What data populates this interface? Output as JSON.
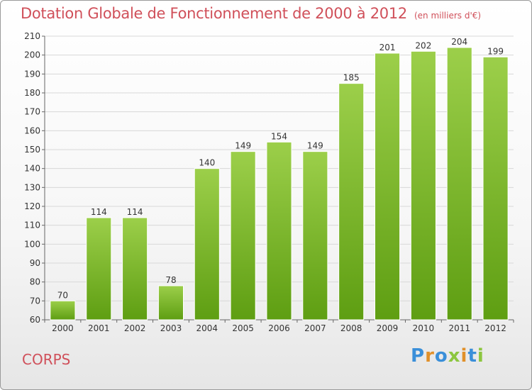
{
  "chart_data": {
    "type": "bar",
    "title": "Dotation Globale de Fonctionnement de 2000 à 2012",
    "subtitle": "(en milliers d'€)",
    "categories": [
      "2000",
      "2001",
      "2002",
      "2003",
      "2004",
      "2005",
      "2006",
      "2007",
      "2008",
      "2009",
      "2010",
      "2011",
      "2012"
    ],
    "values": [
      70,
      114,
      114,
      78,
      140,
      149,
      154,
      149,
      185,
      201,
      202,
      204,
      199
    ],
    "xlabel": "",
    "ylabel": "",
    "ylim": [
      60,
      210
    ],
    "yticks": [
      60,
      70,
      80,
      90,
      100,
      110,
      120,
      130,
      140,
      150,
      160,
      170,
      180,
      190,
      200,
      210
    ],
    "grid": true,
    "legend": "none",
    "bar_color_top": "#9ccf4a",
    "bar_color_bottom": "#5e9e12"
  },
  "footer": {
    "commune": "CORPS",
    "logo": [
      "P",
      "r",
      "o",
      "x",
      "i",
      "t",
      "i"
    ]
  }
}
